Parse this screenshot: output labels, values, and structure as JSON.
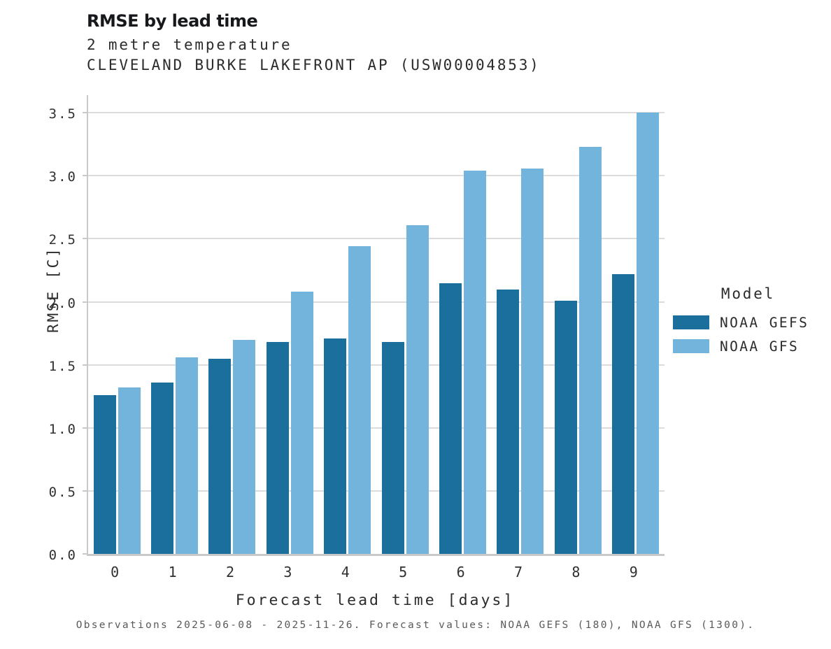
{
  "header": {
    "title": "RMSE by lead time",
    "subtitle": "2 metre temperature",
    "station": "CLEVELAND BURKE LAKEFRONT AP (USW00004853)"
  },
  "chart_data": {
    "type": "bar",
    "title": "RMSE by lead time",
    "subtitle": "2 metre temperature",
    "station": "CLEVELAND BURKE LAKEFRONT AP (USW00004853)",
    "categories": [
      "0",
      "1",
      "2",
      "3",
      "4",
      "5",
      "6",
      "7",
      "8",
      "9"
    ],
    "series": [
      {
        "name": "NOAA GEFS",
        "color": "#1a6f9d",
        "values": [
          1.26,
          1.36,
          1.55,
          1.68,
          1.71,
          1.68,
          2.15,
          2.1,
          2.01,
          2.22
        ]
      },
      {
        "name": "NOAA GFS",
        "color": "#73b4dd",
        "values": [
          1.32,
          1.56,
          1.7,
          2.08,
          2.44,
          2.61,
          3.04,
          3.06,
          3.23,
          3.5
        ]
      }
    ],
    "xlabel": "Forecast lead time [days]",
    "ylabel": "RMSE [C]",
    "ylim": [
      0,
      3.64
    ],
    "yticks": [
      0.0,
      0.5,
      1.0,
      1.5,
      2.0,
      2.5,
      3.0,
      3.5
    ],
    "grid": "horizontal",
    "legend_position": "right",
    "legend_title": "Model"
  },
  "legend": {
    "title": "Model",
    "entries": [
      "NOAA GEFS",
      "NOAA GFS"
    ]
  },
  "footer": {
    "note": "Observations 2025-06-08 - 2025-11-26. Forecast values: NOAA GEFS (180), NOAA GFS (1300)."
  }
}
